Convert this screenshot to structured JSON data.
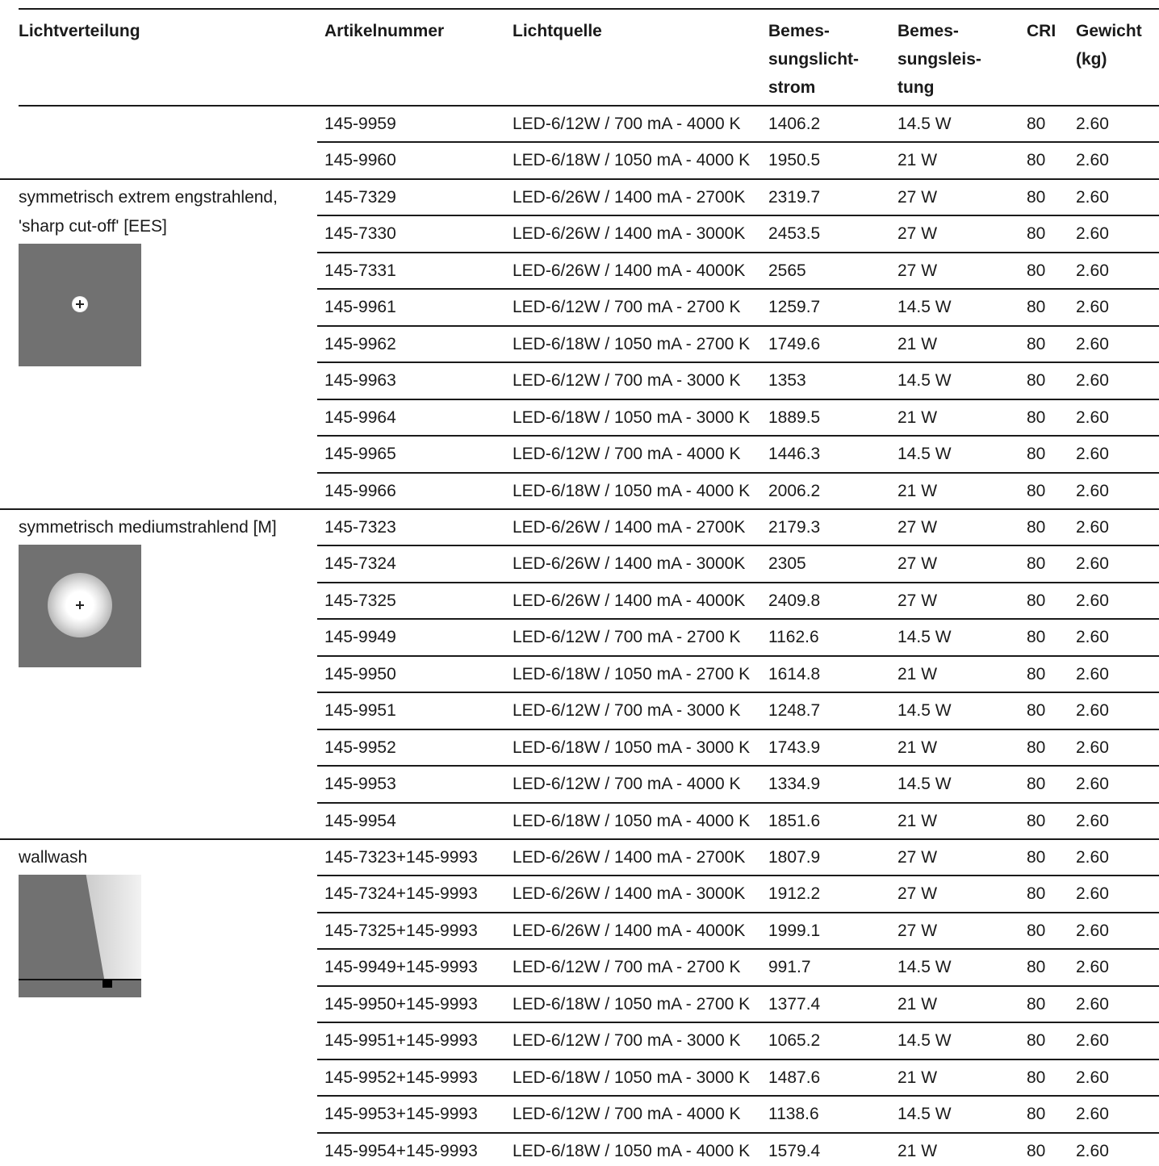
{
  "headers": {
    "lichtverteilung": "Lichtverteilung",
    "artikelnummer": "Artikelnummer",
    "lichtquelle": "Lichtquelle",
    "lichtstrom": [
      "Bemes-",
      "sungslicht-",
      "strom"
    ],
    "leistung": [
      "Bemes-",
      "sungsleis-",
      "tung"
    ],
    "cri": "CRI",
    "gewicht": [
      "Gewicht",
      "(kg)"
    ]
  },
  "groups": [
    {
      "label": "",
      "distribution_icon": "",
      "rows": [
        [
          "145-9959",
          "LED-6/12W / 700 mA - 4000 K",
          "1406.2",
          "14.5 W",
          "80",
          "2.60"
        ],
        [
          "145-9960",
          "LED-6/18W / 1050 mA - 4000 K",
          "1950.5",
          "21 W",
          "80",
          "2.60"
        ]
      ]
    },
    {
      "label": "symmetrisch extrem engstrahlend, 'sharp cut-off' [EES]",
      "distribution_icon": "narrow-spot-light-distribution-icon",
      "rows": [
        [
          "145-7329",
          "LED-6/26W / 1400 mA - 2700K",
          "2319.7",
          "27 W",
          "80",
          "2.60"
        ],
        [
          "145-7330",
          "LED-6/26W / 1400 mA - 3000K",
          "2453.5",
          "27 W",
          "80",
          "2.60"
        ],
        [
          "145-7331",
          "LED-6/26W / 1400 mA - 4000K",
          "2565",
          "27 W",
          "80",
          "2.60"
        ],
        [
          "145-9961",
          "LED-6/12W / 700 mA - 2700 K",
          "1259.7",
          "14.5 W",
          "80",
          "2.60"
        ],
        [
          "145-9962",
          "LED-6/18W / 1050 mA - 2700 K",
          "1749.6",
          "21 W",
          "80",
          "2.60"
        ],
        [
          "145-9963",
          "LED-6/12W / 700 mA - 3000 K",
          "1353",
          "14.5 W",
          "80",
          "2.60"
        ],
        [
          "145-9964",
          "LED-6/18W / 1050 mA - 3000 K",
          "1889.5",
          "21 W",
          "80",
          "2.60"
        ],
        [
          "145-9965",
          "LED-6/12W / 700 mA - 4000 K",
          "1446.3",
          "14.5 W",
          "80",
          "2.60"
        ],
        [
          "145-9966",
          "LED-6/18W / 1050 mA - 4000 K",
          "2006.2",
          "21 W",
          "80",
          "2.60"
        ]
      ]
    },
    {
      "label": "symmetrisch mediumstrahlend [M]",
      "distribution_icon": "medium-spot-light-distribution-icon",
      "rows": [
        [
          "145-7323",
          "LED-6/26W / 1400 mA - 2700K",
          "2179.3",
          "27 W",
          "80",
          "2.60"
        ],
        [
          "145-7324",
          "LED-6/26W / 1400 mA - 3000K",
          "2305",
          "27 W",
          "80",
          "2.60"
        ],
        [
          "145-7325",
          "LED-6/26W / 1400 mA - 4000K",
          "2409.8",
          "27 W",
          "80",
          "2.60"
        ],
        [
          "145-9949",
          "LED-6/12W / 700 mA - 2700 K",
          "1162.6",
          "14.5 W",
          "80",
          "2.60"
        ],
        [
          "145-9950",
          "LED-6/18W / 1050 mA - 2700 K",
          "1614.8",
          "21 W",
          "80",
          "2.60"
        ],
        [
          "145-9951",
          "LED-6/12W / 700 mA - 3000 K",
          "1248.7",
          "14.5 W",
          "80",
          "2.60"
        ],
        [
          "145-9952",
          "LED-6/18W / 1050 mA - 3000 K",
          "1743.9",
          "21 W",
          "80",
          "2.60"
        ],
        [
          "145-9953",
          "LED-6/12W / 700 mA - 4000 K",
          "1334.9",
          "14.5 W",
          "80",
          "2.60"
        ],
        [
          "145-9954",
          "LED-6/18W / 1050 mA - 4000 K",
          "1851.6",
          "21 W",
          "80",
          "2.60"
        ]
      ]
    },
    {
      "label": "wallwash",
      "distribution_icon": "wallwash-light-distribution-icon",
      "rows": [
        [
          "145-7323+145-9993",
          "LED-6/26W / 1400 mA - 2700K",
          "1807.9",
          "27 W",
          "80",
          "2.60"
        ],
        [
          "145-7324+145-9993",
          "LED-6/26W / 1400 mA - 3000K",
          "1912.2",
          "27 W",
          "80",
          "2.60"
        ],
        [
          "145-7325+145-9993",
          "LED-6/26W / 1400 mA - 4000K",
          "1999.1",
          "27 W",
          "80",
          "2.60"
        ],
        [
          "145-9949+145-9993",
          "LED-6/12W / 700 mA - 2700 K",
          "991.7",
          "14.5 W",
          "80",
          "2.60"
        ],
        [
          "145-9950+145-9993",
          "LED-6/18W / 1050 mA - 2700 K",
          "1377.4",
          "21 W",
          "80",
          "2.60"
        ],
        [
          "145-9951+145-9993",
          "LED-6/12W / 700 mA - 3000 K",
          "1065.2",
          "14.5 W",
          "80",
          "2.60"
        ],
        [
          "145-9952+145-9993",
          "LED-6/18W / 1050 mA - 3000 K",
          "1487.6",
          "21 W",
          "80",
          "2.60"
        ],
        [
          "145-9953+145-9993",
          "LED-6/12W / 700 mA - 4000 K",
          "1138.6",
          "14.5 W",
          "80",
          "2.60"
        ],
        [
          "145-9954+145-9993",
          "LED-6/18W / 1050 mA - 4000 K",
          "1579.4",
          "21 W",
          "80",
          "2.60"
        ]
      ]
    }
  ]
}
